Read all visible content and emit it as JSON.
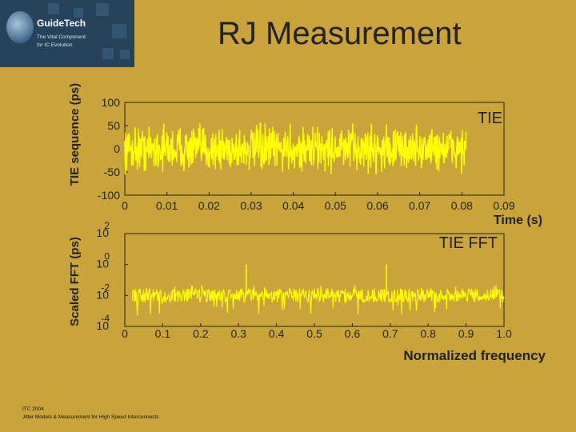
{
  "header": {
    "title": "RJ Measurement",
    "logo_name": "GuideTech",
    "logo_tagline_1": "The Vital Component",
    "logo_tagline_2": "for IC Evolution"
  },
  "footer": {
    "line1": "ITC 2004",
    "line2": "Jitter Models & Measurement for High Speed Interconnects"
  },
  "colors": {
    "background": "#c8a43a",
    "trace": "#ffff00",
    "axis": "#222222"
  },
  "chart_data": [
    {
      "type": "line",
      "legend": "TIE",
      "ylabel": "TIE sequence (ps)",
      "xlabel": "Time (s)",
      "xlim": [
        0,
        0.09
      ],
      "ylim": [
        -100,
        100
      ],
      "x_ticks": [
        "0",
        "0.01",
        "0.02",
        "0.03",
        "0.04",
        "0.05",
        "0.06",
        "0.07",
        "0.08",
        "0.09"
      ],
      "y_ticks": [
        "100",
        "50",
        "0",
        "-50",
        "-100"
      ],
      "signal_x_range": [
        0,
        0.081
      ],
      "signal_amplitude": [
        -55,
        55
      ]
    },
    {
      "type": "line",
      "legend": "TIE FFT",
      "ylabel": "Scaled FFT (ps)",
      "xlabel": "Normalized frequency",
      "xlim": [
        0,
        1.0
      ],
      "y_scale": "log",
      "ylim": [
        0.0001,
        100
      ],
      "x_ticks": [
        "0",
        "0.1",
        "0.2",
        "0.3",
        "0.4",
        "0.5",
        "0.6",
        "0.7",
        "0.8",
        "0.9",
        "1.0"
      ],
      "y_ticks": [
        {
          "base": "10",
          "exp": "2"
        },
        {
          "base": "10",
          "exp": "0"
        },
        {
          "base": "10",
          "exp": "-2"
        },
        {
          "base": "10",
          "exp": "-4"
        }
      ],
      "noise_floor": 0.01,
      "peaks": [
        {
          "x": 0.32,
          "y": 1
        },
        {
          "x": 0.69,
          "y": 1
        }
      ]
    }
  ]
}
